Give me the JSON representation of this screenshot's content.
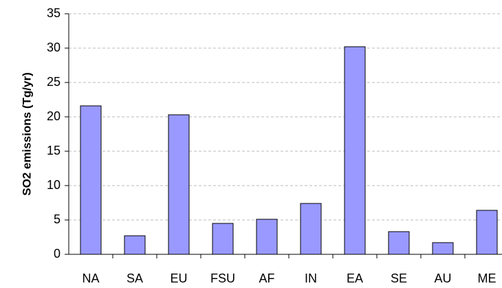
{
  "chart_data": {
    "type": "bar",
    "ylabel": "SO2 emissions (Tg/yr)",
    "categories": [
      "NA",
      "SA",
      "EU",
      "FSU",
      "AF",
      "IN",
      "EA",
      "SE",
      "AU",
      "ME"
    ],
    "values": [
      21.6,
      2.7,
      20.3,
      4.5,
      5.1,
      7.4,
      30.2,
      3.3,
      1.7,
      6.4
    ],
    "color": "#9999ff",
    "ylim": [
      0,
      35
    ],
    "yticks": [
      0,
      5,
      10,
      15,
      20,
      25,
      30,
      35
    ],
    "grid": true
  }
}
